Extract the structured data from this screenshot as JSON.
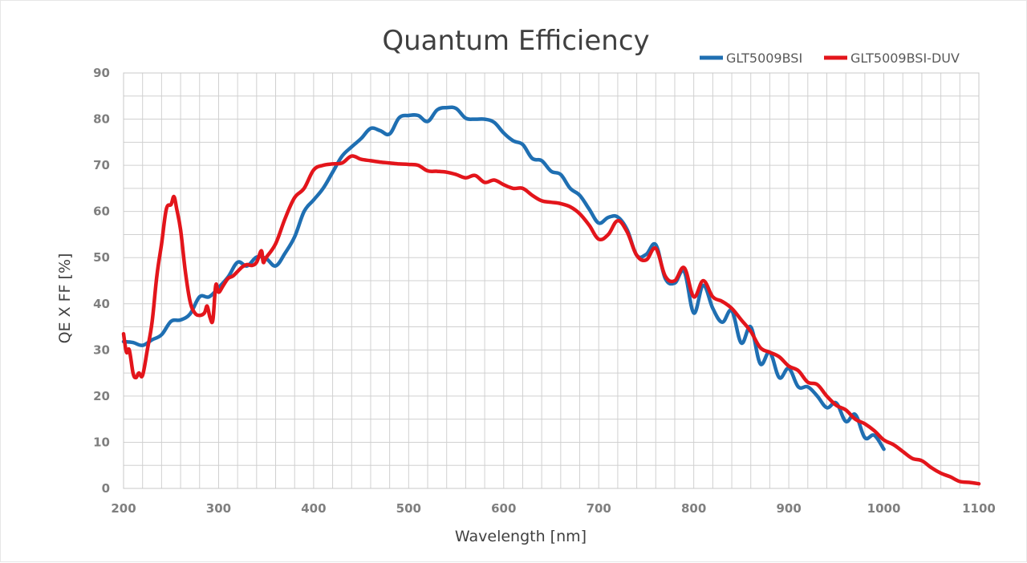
{
  "chart_data": {
    "type": "line",
    "title": "Quantum Efficiency",
    "xlabel": "Wavelength [nm]",
    "ylabel": "QE X FF [%]",
    "xlim": [
      200,
      1100
    ],
    "ylim": [
      0,
      90
    ],
    "x_ticks": [
      200,
      300,
      400,
      500,
      600,
      700,
      800,
      900,
      1000,
      1100
    ],
    "x_tick_labels": [
      "200",
      "300",
      "400",
      "500",
      "600",
      "700",
      "800",
      "900",
      "1000",
      "1100"
    ],
    "y_ticks": [
      0,
      10,
      20,
      30,
      40,
      50,
      60,
      70,
      80,
      90
    ],
    "y_tick_labels": [
      "0",
      "10",
      "20",
      "30",
      "40",
      "50",
      "60",
      "70",
      "80",
      "90"
    ],
    "x_minor_step": 20,
    "y_minor_step": 5,
    "grid": true,
    "legend_position": "top-right",
    "series": [
      {
        "name": "GLT5009BSI",
        "color": "#1f6fb2",
        "x": [
          200,
          210,
          220,
          230,
          240,
          250,
          260,
          270,
          280,
          290,
          300,
          310,
          320,
          330,
          340,
          350,
          360,
          370,
          380,
          390,
          400,
          410,
          420,
          430,
          440,
          450,
          460,
          470,
          480,
          490,
          500,
          510,
          520,
          530,
          540,
          550,
          560,
          570,
          580,
          590,
          600,
          610,
          620,
          630,
          640,
          650,
          660,
          670,
          680,
          690,
          700,
          710,
          720,
          730,
          740,
          750,
          760,
          770,
          780,
          790,
          800,
          810,
          820,
          830,
          840,
          850,
          860,
          870,
          880,
          890,
          900,
          910,
          920,
          930,
          940,
          950,
          960,
          970,
          980,
          990,
          1000
        ],
        "values": [
          31.8,
          31.6,
          31.0,
          32.2,
          33.3,
          36.2,
          36.5,
          37.8,
          41.5,
          41.5,
          43.5,
          45.8,
          49.0,
          48.2,
          50.1,
          49.8,
          48.2,
          51.0,
          54.5,
          60.0,
          62.5,
          65.0,
          68.5,
          72.0,
          74.0,
          75.8,
          78.0,
          77.5,
          76.8,
          80.3,
          80.8,
          80.8,
          79.5,
          82.0,
          82.5,
          82.3,
          80.2,
          80.0,
          80.0,
          79.3,
          77.0,
          75.3,
          74.5,
          71.5,
          71.0,
          68.7,
          68.0,
          65.0,
          63.5,
          60.5,
          57.5,
          58.7,
          58.8,
          56.0,
          50.5,
          50.7,
          52.8,
          45.5,
          44.5,
          47.0,
          38.0,
          44.0,
          39.0,
          36.0,
          38.5,
          31.5,
          35.0,
          27.0,
          29.5,
          24.0,
          26.0,
          22.0,
          22.0,
          20.0,
          17.5,
          18.5,
          14.5,
          16.0,
          11.0,
          11.5,
          8.5
        ]
      },
      {
        "name": "GLT5009BSI-DUV",
        "color": "#e3151b",
        "x": [
          200,
          203,
          206,
          210,
          213,
          216,
          220,
          225,
          230,
          235,
          240,
          245,
          250,
          253,
          256,
          260,
          265,
          270,
          275,
          280,
          285,
          288,
          291,
          294,
          297,
          300,
          305,
          310,
          315,
          320,
          325,
          330,
          335,
          340,
          345,
          347,
          350,
          360,
          370,
          380,
          390,
          400,
          410,
          420,
          430,
          440,
          450,
          460,
          470,
          480,
          490,
          500,
          510,
          520,
          530,
          540,
          550,
          560,
          570,
          580,
          590,
          600,
          610,
          620,
          630,
          640,
          650,
          660,
          670,
          680,
          690,
          700,
          710,
          720,
          730,
          740,
          750,
          760,
          770,
          780,
          790,
          800,
          810,
          820,
          830,
          840,
          850,
          860,
          870,
          880,
          890,
          900,
          910,
          920,
          930,
          940,
          950,
          960,
          970,
          980,
          990,
          1000,
          1010,
          1020,
          1030,
          1040,
          1050,
          1060,
          1070,
          1080,
          1090,
          1100
        ],
        "values": [
          33.5,
          29.5,
          30.0,
          25.0,
          24.0,
          25.0,
          24.5,
          30.0,
          36.0,
          46.0,
          53.0,
          60.5,
          61.5,
          63.2,
          60.5,
          56.0,
          47.0,
          40.5,
          38.0,
          37.5,
          38.0,
          39.5,
          37.0,
          36.5,
          44.0,
          42.5,
          44.0,
          45.5,
          46.0,
          47.0,
          48.0,
          48.5,
          48.3,
          49.0,
          51.5,
          49.0,
          50.0,
          53.0,
          58.5,
          63.0,
          65.0,
          69.0,
          70.0,
          70.3,
          70.5,
          72.0,
          71.3,
          71.0,
          70.7,
          70.5,
          70.3,
          70.2,
          70.0,
          68.8,
          68.7,
          68.5,
          68.0,
          67.3,
          67.8,
          66.3,
          66.8,
          65.8,
          65.0,
          65.0,
          63.5,
          62.3,
          62.0,
          61.7,
          61.0,
          59.5,
          57.0,
          54.0,
          55.0,
          58.0,
          55.5,
          50.5,
          49.5,
          52.0,
          46.0,
          45.0,
          47.8,
          41.5,
          45.0,
          41.5,
          40.5,
          39.0,
          36.5,
          34.0,
          30.5,
          29.5,
          28.5,
          26.5,
          25.5,
          23.0,
          22.5,
          20.0,
          18.0,
          17.0,
          15.0,
          14.0,
          12.5,
          10.5,
          9.5,
          8.0,
          6.5,
          6.0,
          4.5,
          3.3,
          2.5,
          1.5,
          1.3,
          1.0
        ]
      }
    ]
  }
}
